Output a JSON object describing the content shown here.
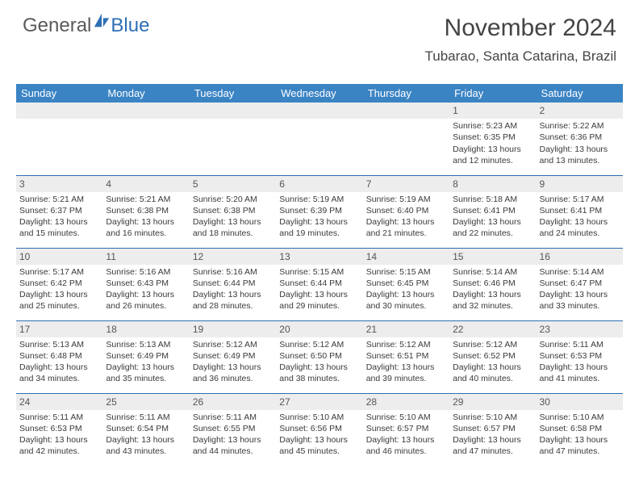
{
  "logo": {
    "text1": "General",
    "text2": "Blue",
    "icon_color": "#2d6fb5"
  },
  "title": "November 2024",
  "location": "Tubarao, Santa Catarina, Brazil",
  "colors": {
    "header_bg": "#3b84c4",
    "header_text": "#ffffff",
    "border": "#2d6fb5",
    "daynum_bg": "#ededed",
    "text": "#3a3a3a"
  },
  "weekdays": [
    "Sunday",
    "Monday",
    "Tuesday",
    "Wednesday",
    "Thursday",
    "Friday",
    "Saturday"
  ],
  "weeks": [
    [
      null,
      null,
      null,
      null,
      null,
      {
        "n": "1",
        "sr": "5:23 AM",
        "ss": "6:35 PM",
        "dl": "13 hours and 12 minutes."
      },
      {
        "n": "2",
        "sr": "5:22 AM",
        "ss": "6:36 PM",
        "dl": "13 hours and 13 minutes."
      }
    ],
    [
      {
        "n": "3",
        "sr": "5:21 AM",
        "ss": "6:37 PM",
        "dl": "13 hours and 15 minutes."
      },
      {
        "n": "4",
        "sr": "5:21 AM",
        "ss": "6:38 PM",
        "dl": "13 hours and 16 minutes."
      },
      {
        "n": "5",
        "sr": "5:20 AM",
        "ss": "6:38 PM",
        "dl": "13 hours and 18 minutes."
      },
      {
        "n": "6",
        "sr": "5:19 AM",
        "ss": "6:39 PM",
        "dl": "13 hours and 19 minutes."
      },
      {
        "n": "7",
        "sr": "5:19 AM",
        "ss": "6:40 PM",
        "dl": "13 hours and 21 minutes."
      },
      {
        "n": "8",
        "sr": "5:18 AM",
        "ss": "6:41 PM",
        "dl": "13 hours and 22 minutes."
      },
      {
        "n": "9",
        "sr": "5:17 AM",
        "ss": "6:41 PM",
        "dl": "13 hours and 24 minutes."
      }
    ],
    [
      {
        "n": "10",
        "sr": "5:17 AM",
        "ss": "6:42 PM",
        "dl": "13 hours and 25 minutes."
      },
      {
        "n": "11",
        "sr": "5:16 AM",
        "ss": "6:43 PM",
        "dl": "13 hours and 26 minutes."
      },
      {
        "n": "12",
        "sr": "5:16 AM",
        "ss": "6:44 PM",
        "dl": "13 hours and 28 minutes."
      },
      {
        "n": "13",
        "sr": "5:15 AM",
        "ss": "6:44 PM",
        "dl": "13 hours and 29 minutes."
      },
      {
        "n": "14",
        "sr": "5:15 AM",
        "ss": "6:45 PM",
        "dl": "13 hours and 30 minutes."
      },
      {
        "n": "15",
        "sr": "5:14 AM",
        "ss": "6:46 PM",
        "dl": "13 hours and 32 minutes."
      },
      {
        "n": "16",
        "sr": "5:14 AM",
        "ss": "6:47 PM",
        "dl": "13 hours and 33 minutes."
      }
    ],
    [
      {
        "n": "17",
        "sr": "5:13 AM",
        "ss": "6:48 PM",
        "dl": "13 hours and 34 minutes."
      },
      {
        "n": "18",
        "sr": "5:13 AM",
        "ss": "6:49 PM",
        "dl": "13 hours and 35 minutes."
      },
      {
        "n": "19",
        "sr": "5:12 AM",
        "ss": "6:49 PM",
        "dl": "13 hours and 36 minutes."
      },
      {
        "n": "20",
        "sr": "5:12 AM",
        "ss": "6:50 PM",
        "dl": "13 hours and 38 minutes."
      },
      {
        "n": "21",
        "sr": "5:12 AM",
        "ss": "6:51 PM",
        "dl": "13 hours and 39 minutes."
      },
      {
        "n": "22",
        "sr": "5:12 AM",
        "ss": "6:52 PM",
        "dl": "13 hours and 40 minutes."
      },
      {
        "n": "23",
        "sr": "5:11 AM",
        "ss": "6:53 PM",
        "dl": "13 hours and 41 minutes."
      }
    ],
    [
      {
        "n": "24",
        "sr": "5:11 AM",
        "ss": "6:53 PM",
        "dl": "13 hours and 42 minutes."
      },
      {
        "n": "25",
        "sr": "5:11 AM",
        "ss": "6:54 PM",
        "dl": "13 hours and 43 minutes."
      },
      {
        "n": "26",
        "sr": "5:11 AM",
        "ss": "6:55 PM",
        "dl": "13 hours and 44 minutes."
      },
      {
        "n": "27",
        "sr": "5:10 AM",
        "ss": "6:56 PM",
        "dl": "13 hours and 45 minutes."
      },
      {
        "n": "28",
        "sr": "5:10 AM",
        "ss": "6:57 PM",
        "dl": "13 hours and 46 minutes."
      },
      {
        "n": "29",
        "sr": "5:10 AM",
        "ss": "6:57 PM",
        "dl": "13 hours and 47 minutes."
      },
      {
        "n": "30",
        "sr": "5:10 AM",
        "ss": "6:58 PM",
        "dl": "13 hours and 47 minutes."
      }
    ]
  ],
  "labels": {
    "sunrise": "Sunrise:",
    "sunset": "Sunset:",
    "daylight": "Daylight:"
  }
}
